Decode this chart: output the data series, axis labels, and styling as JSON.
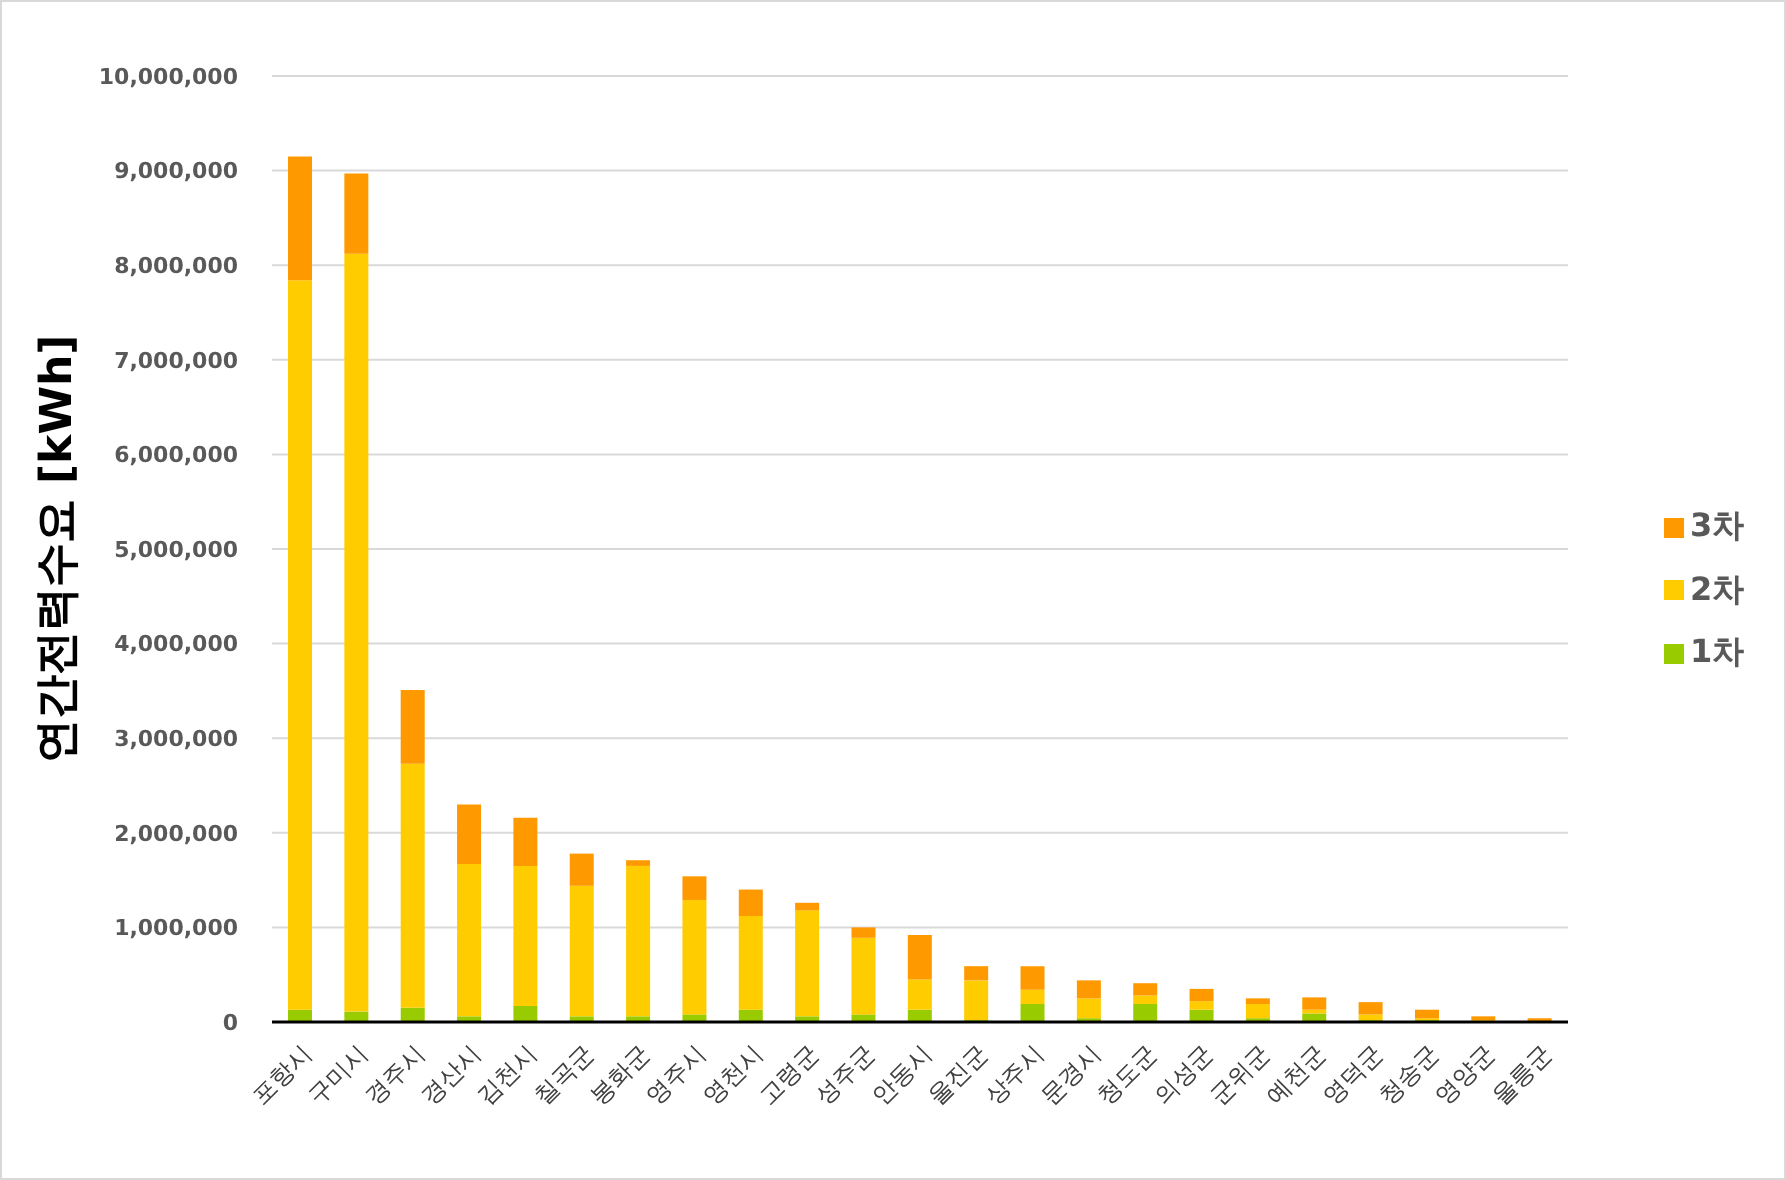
{
  "chart_data": {
    "type": "bar",
    "ylabel": "연간전력수요 [kWh]",
    "categories": [
      "포항시",
      "구미시",
      "경주시",
      "경산시",
      "김천시",
      "칠곡군",
      "봉화군",
      "영주시",
      "영천시",
      "고령군",
      "성주군",
      "안동시",
      "울진군",
      "상주시",
      "문경시",
      "청도군",
      "의성군",
      "군위군",
      "예천군",
      "영덕군",
      "청송군",
      "영양군",
      "울릉군"
    ],
    "series": [
      {
        "name": "1차",
        "color": "#99cc00",
        "values": [
          130000,
          110000,
          150000,
          60000,
          170000,
          60000,
          60000,
          80000,
          130000,
          60000,
          80000,
          130000,
          20000,
          190000,
          40000,
          190000,
          130000,
          40000,
          90000,
          20000,
          20000,
          10000,
          0
        ]
      },
      {
        "name": "2차",
        "color": "#ffcc00",
        "values": [
          7710000,
          8010000,
          2580000,
          1610000,
          1480000,
          1380000,
          1590000,
          1210000,
          990000,
          1120000,
          810000,
          320000,
          420000,
          150000,
          210000,
          90000,
          90000,
          150000,
          40000,
          60000,
          20000,
          10000,
          0
        ]
      },
      {
        "name": "3차",
        "color": "#ff9900",
        "values": [
          1310000,
          850000,
          780000,
          630000,
          510000,
          340000,
          60000,
          250000,
          280000,
          80000,
          110000,
          470000,
          150000,
          250000,
          190000,
          130000,
          130000,
          60000,
          130000,
          130000,
          90000,
          40000,
          40000
        ]
      }
    ],
    "stacked": true,
    "ylim": [
      0,
      10000000
    ],
    "yticks": [
      {
        "value": 0,
        "label": "0"
      },
      {
        "value": 1000000,
        "label": "1,000,000"
      },
      {
        "value": 2000000,
        "label": "2,000,000"
      },
      {
        "value": 3000000,
        "label": "3,000,000"
      },
      {
        "value": 4000000,
        "label": "4,000,000"
      },
      {
        "value": 5000000,
        "label": "5,000,000"
      },
      {
        "value": 6000000,
        "label": "6,000,000"
      },
      {
        "value": 7000000,
        "label": "7,000,000"
      },
      {
        "value": 8000000,
        "label": "8,000,000"
      },
      {
        "value": 9000000,
        "label": "9,000,000"
      },
      {
        "value": 10000000,
        "label": "10,000,000"
      }
    ],
    "grid": "y",
    "legend": "right"
  }
}
